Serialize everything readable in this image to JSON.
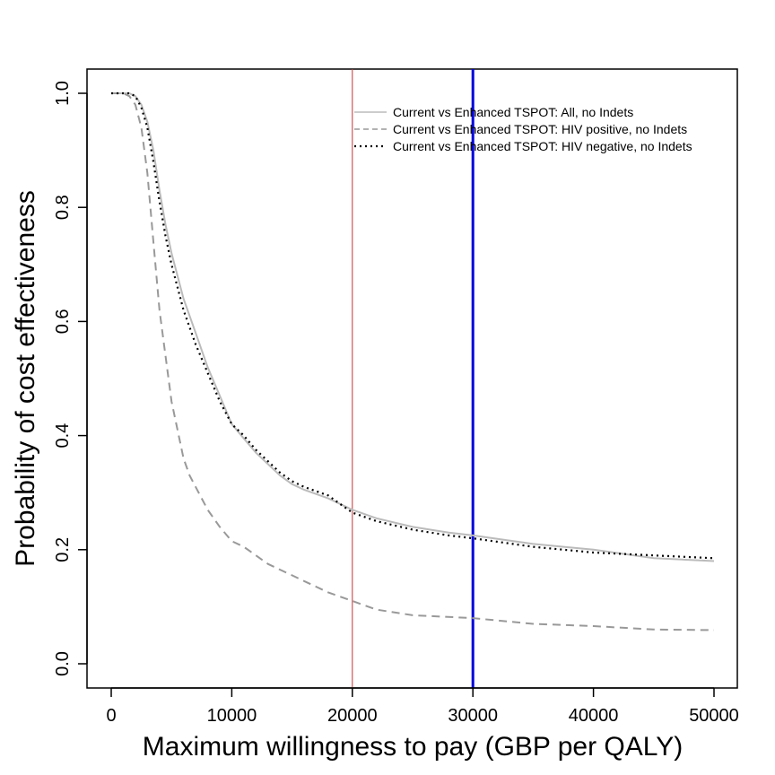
{
  "chart_data": {
    "type": "line",
    "title": "",
    "xlabel": "Maximum willingness to pay (GBP per QALY)",
    "ylabel": "Probability of cost effectiveness",
    "xlim": [
      0,
      50000
    ],
    "ylim": [
      0,
      1
    ],
    "x_ticks": [
      0,
      10000,
      20000,
      30000,
      40000,
      50000
    ],
    "x_tick_labels": [
      "0",
      "10000",
      "20000",
      "30000",
      "40000",
      "50000"
    ],
    "y_ticks": [
      0.0,
      0.2,
      0.4,
      0.6,
      0.8,
      1.0
    ],
    "y_tick_labels": [
      "0.0",
      "0.2",
      "0.4",
      "0.6",
      "0.8",
      "1.0"
    ],
    "grid": false,
    "legend_position": "top-right",
    "reference_lines": [
      {
        "x": 20000,
        "color": "#cc3333"
      },
      {
        "x": 30000,
        "color": "#0000dd"
      }
    ],
    "series": [
      {
        "name": "Current vs Enhanced TSPOT: All, no Indets",
        "color": "#bbbbbb",
        "style": "solid",
        "x": [
          0,
          1000,
          1500,
          2000,
          2500,
          3000,
          3500,
          4000,
          4500,
          5000,
          5500,
          6000,
          7000,
          8000,
          9000,
          10000,
          11000,
          12000,
          14000,
          15000,
          16000,
          18000,
          20000,
          22000,
          25000,
          28000,
          30000,
          35000,
          40000,
          45000,
          50000
        ],
        "values": [
          1.0,
          1.0,
          1.0,
          0.995,
          0.98,
          0.95,
          0.9,
          0.83,
          0.77,
          0.72,
          0.68,
          0.64,
          0.58,
          0.52,
          0.47,
          0.42,
          0.395,
          0.37,
          0.33,
          0.315,
          0.305,
          0.29,
          0.27,
          0.255,
          0.24,
          0.23,
          0.225,
          0.21,
          0.2,
          0.185,
          0.18
        ]
      },
      {
        "name": "Current vs Enhanced TSPOT: HIV positive, no Indets",
        "color": "#999999",
        "style": "dashed",
        "x": [
          0,
          1000,
          1500,
          2000,
          2500,
          3000,
          3500,
          4000,
          4500,
          5000,
          5500,
          6000,
          6500,
          7000,
          8000,
          9000,
          10000,
          11000,
          12000,
          13000,
          14000,
          15000,
          16000,
          17000,
          18000,
          20000,
          22000,
          25000,
          30000,
          35000,
          40000,
          45000,
          50000
        ],
        "values": [
          1.0,
          1.0,
          0.995,
          0.98,
          0.94,
          0.86,
          0.74,
          0.62,
          0.54,
          0.46,
          0.41,
          0.36,
          0.33,
          0.31,
          0.27,
          0.24,
          0.215,
          0.205,
          0.19,
          0.175,
          0.165,
          0.155,
          0.145,
          0.135,
          0.125,
          0.11,
          0.095,
          0.085,
          0.08,
          0.07,
          0.066,
          0.06,
          0.059
        ]
      },
      {
        "name": "Current vs Enhanced TSPOT: HIV negative, no Indets",
        "color": "#000000",
        "style": "dotted",
        "x": [
          0,
          1000,
          1500,
          2000,
          2500,
          3000,
          3500,
          4000,
          4500,
          5000,
          5500,
          6000,
          7000,
          8000,
          9000,
          10000,
          11000,
          12000,
          14000,
          15000,
          16000,
          18000,
          20000,
          22000,
          25000,
          28000,
          30000,
          35000,
          40000,
          45000,
          50000
        ],
        "values": [
          1.0,
          1.0,
          1.0,
          0.995,
          0.975,
          0.94,
          0.88,
          0.81,
          0.75,
          0.7,
          0.66,
          0.62,
          0.56,
          0.51,
          0.46,
          0.42,
          0.4,
          0.375,
          0.335,
          0.32,
          0.31,
          0.295,
          0.265,
          0.25,
          0.235,
          0.225,
          0.22,
          0.205,
          0.195,
          0.19,
          0.185
        ]
      }
    ]
  }
}
